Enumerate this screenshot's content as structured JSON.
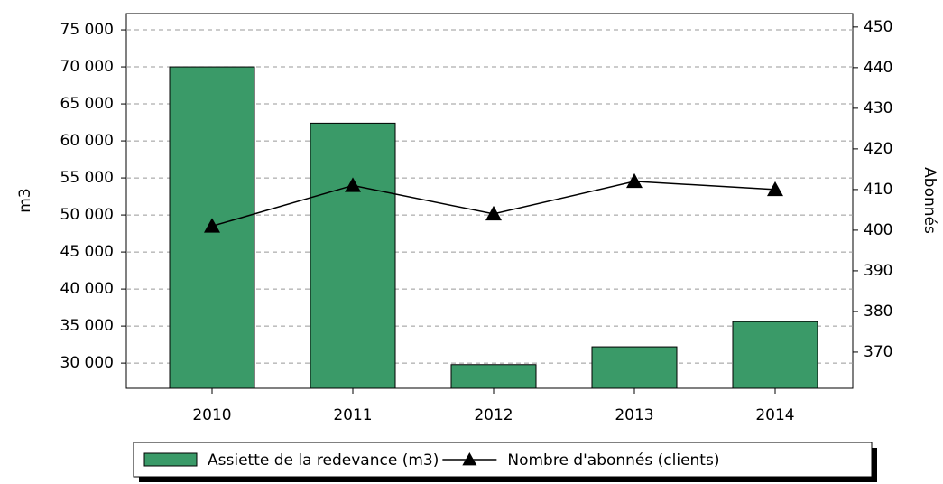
{
  "chart_data": {
    "type": "bar",
    "categories": [
      "2010",
      "2011",
      "2012",
      "2013",
      "2014"
    ],
    "series": [
      {
        "name": "Assiette de la redevance (m3)",
        "type": "bar",
        "color": "#3a9a68",
        "values": [
          70000,
          62400,
          29800,
          32200,
          35600
        ]
      },
      {
        "name": "Nombre d'abonnés (clients)",
        "type": "line",
        "axis": "y2",
        "color": "#000000",
        "values": [
          401,
          411,
          404,
          412,
          410
        ]
      }
    ],
    "ylabel": "m3",
    "y2label": "Abonnés",
    "ylim": [
      26600,
      77200
    ],
    "yticks": [
      {
        "value": 30000,
        "label": "30 000"
      },
      {
        "value": 35000,
        "label": "35 000"
      },
      {
        "value": 40000,
        "label": "40 000"
      },
      {
        "value": 45000,
        "label": "45 000"
      },
      {
        "value": 50000,
        "label": "50 000"
      },
      {
        "value": 55000,
        "label": "55 000"
      },
      {
        "value": 60000,
        "label": "60 000"
      },
      {
        "value": 65000,
        "label": "65 000"
      },
      {
        "value": 70000,
        "label": "70 000"
      },
      {
        "value": 75000,
        "label": "75 000"
      }
    ],
    "y2lim": [
      361.1,
      453.3
    ],
    "y2ticks": [
      370,
      380,
      390,
      400,
      410,
      420,
      430,
      440,
      450
    ],
    "grid": true,
    "legend": "bottom"
  }
}
